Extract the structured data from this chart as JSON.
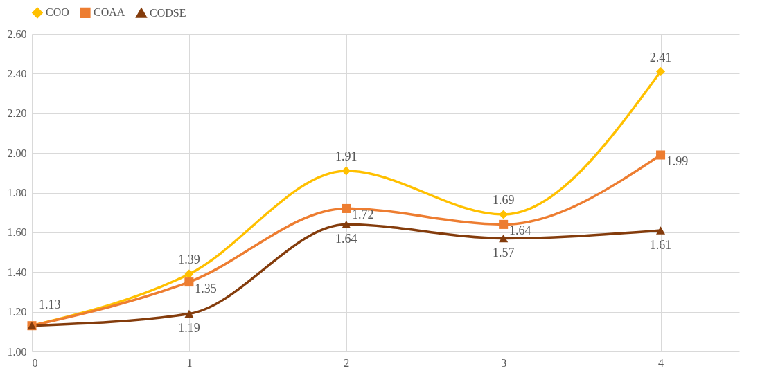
{
  "chart_data": {
    "type": "line",
    "x": [
      0,
      1,
      2,
      3,
      4
    ],
    "xlim": [
      0,
      4.5
    ],
    "xticks": [
      0,
      1,
      2,
      3,
      4
    ],
    "ylim": [
      1.0,
      2.6
    ],
    "yticks": [
      {
        "value": 1.0,
        "label": "1.00"
      },
      {
        "value": 1.2,
        "label": "1.20"
      },
      {
        "value": 1.4,
        "label": "1.40"
      },
      {
        "value": 1.6,
        "label": "1.60"
      },
      {
        "value": 1.8,
        "label": "1.80"
      },
      {
        "value": 2.0,
        "label": "2.00"
      },
      {
        "value": 2.2,
        "label": "2.20"
      },
      {
        "value": 2.4,
        "label": "2.40"
      },
      {
        "value": 2.6,
        "label": "2.60"
      }
    ],
    "grid": true,
    "legend": "top",
    "line_style": "solid",
    "series": [
      {
        "name": "COO",
        "color": "#ffc000",
        "marker": "diamond",
        "values": [
          1.13,
          1.39,
          1.91,
          1.69,
          2.41
        ],
        "value_labels": [
          "1.13",
          "1.39",
          "1.91",
          "1.69",
          "2.41"
        ]
      },
      {
        "name": "COAA",
        "color": "#ed7d31",
        "marker": "square",
        "values": [
          1.13,
          1.35,
          1.72,
          1.64,
          1.99
        ],
        "value_labels": [
          null,
          "1.35",
          "1.72",
          "1.64",
          "1.99"
        ]
      },
      {
        "name": "CODSE",
        "color": "#843c0c",
        "marker": "triangle",
        "values": [
          1.13,
          1.19,
          1.64,
          1.57,
          1.61
        ],
        "value_labels": [
          null,
          "1.19",
          "1.64",
          "1.57",
          "1.61"
        ]
      }
    ]
  }
}
